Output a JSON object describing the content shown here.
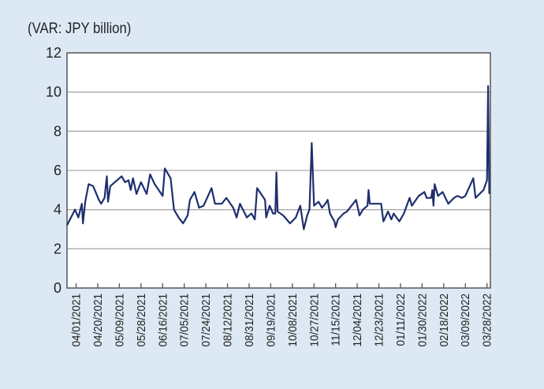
{
  "chart_data": {
    "type": "line",
    "title": "",
    "unit_label": "(VAR: JPY billion)",
    "xlabel": "",
    "ylabel": "",
    "ylim": [
      0,
      12
    ],
    "yticks": [
      0,
      2,
      4,
      6,
      8,
      10,
      12
    ],
    "grid": true,
    "x_domain_days_from_2021_04_01": [
      -8,
      364
    ],
    "xtick_days": [
      0,
      19,
      38,
      57,
      76,
      95,
      114,
      133,
      152,
      171,
      190,
      209,
      228,
      247,
      266,
      285,
      304,
      323,
      342,
      361
    ],
    "xtick_labels": [
      "04/01/2021",
      "04/20/2021",
      "05/09/2021",
      "05/28/2021",
      "06/16/2021",
      "07/05/2021",
      "07/24/2021",
      "08/12/2021",
      "08/31/2021",
      "09/19/2021",
      "10/08/2021",
      "10/27/2021",
      "11/15/2021",
      "12/04/2021",
      "12/23/2021",
      "01/11/2022",
      "01/30/2022",
      "02/18/2022",
      "03/09/2022",
      "03/28/2022"
    ],
    "series": [
      {
        "name": "VAR",
        "color": "#1f2f6e",
        "points": [
          [
            -8,
            3.2
          ],
          [
            -1,
            4.0
          ],
          [
            2,
            3.6
          ],
          [
            5,
            4.3
          ],
          [
            6,
            3.3
          ],
          [
            8,
            4.4
          ],
          [
            11,
            5.3
          ],
          [
            15,
            5.2
          ],
          [
            20,
            4.5
          ],
          [
            22,
            4.3
          ],
          [
            25,
            4.6
          ],
          [
            27,
            5.7
          ],
          [
            28,
            4.4
          ],
          [
            30,
            5.2
          ],
          [
            36,
            5.5
          ],
          [
            40,
            5.7
          ],
          [
            43,
            5.4
          ],
          [
            46,
            5.5
          ],
          [
            48,
            5.0
          ],
          [
            50,
            5.6
          ],
          [
            53,
            4.8
          ],
          [
            57,
            5.4
          ],
          [
            62,
            4.8
          ],
          [
            65,
            5.8
          ],
          [
            69,
            5.3
          ],
          [
            76,
            4.7
          ],
          [
            78,
            6.1
          ],
          [
            83,
            5.6
          ],
          [
            86,
            4.0
          ],
          [
            90,
            3.6
          ],
          [
            94,
            3.3
          ],
          [
            98,
            3.7
          ],
          [
            100,
            4.5
          ],
          [
            104,
            4.9
          ],
          [
            108,
            4.1
          ],
          [
            112,
            4.2
          ],
          [
            119,
            5.1
          ],
          [
            122,
            4.3
          ],
          [
            128,
            4.3
          ],
          [
            132,
            4.6
          ],
          [
            138,
            4.1
          ],
          [
            141,
            3.6
          ],
          [
            144,
            4.3
          ],
          [
            150,
            3.6
          ],
          [
            154,
            3.8
          ],
          [
            157,
            3.5
          ],
          [
            159,
            5.1
          ],
          [
            166,
            4.5
          ],
          [
            167,
            3.6
          ],
          [
            170,
            4.2
          ],
          [
            173,
            3.8
          ],
          [
            175,
            3.8
          ],
          [
            176,
            5.9
          ],
          [
            177,
            3.9
          ],
          [
            182,
            3.7
          ],
          [
            188,
            3.3
          ],
          [
            193,
            3.6
          ],
          [
            197,
            4.2
          ],
          [
            200,
            3.0
          ],
          [
            203,
            3.7
          ],
          [
            205,
            4.0
          ],
          [
            207,
            7.4
          ],
          [
            209,
            4.2
          ],
          [
            213,
            4.4
          ],
          [
            216,
            4.1
          ],
          [
            219,
            4.3
          ],
          [
            221,
            4.5
          ],
          [
            223,
            3.8
          ],
          [
            227,
            3.4
          ],
          [
            228,
            3.1
          ],
          [
            230,
            3.5
          ],
          [
            235,
            3.8
          ],
          [
            238,
            3.9
          ],
          [
            246,
            4.5
          ],
          [
            249,
            3.7
          ],
          [
            252,
            4.0
          ],
          [
            256,
            4.2
          ],
          [
            257,
            5.0
          ],
          [
            258,
            4.3
          ],
          [
            263,
            4.3
          ],
          [
            268,
            4.3
          ],
          [
            270,
            3.4
          ],
          [
            274,
            3.9
          ],
          [
            277,
            3.5
          ],
          [
            279,
            3.8
          ],
          [
            284,
            3.4
          ],
          [
            288,
            3.8
          ],
          [
            293,
            4.6
          ],
          [
            295,
            4.2
          ],
          [
            301,
            4.7
          ],
          [
            306,
            4.9
          ],
          [
            308,
            4.6
          ],
          [
            312,
            4.6
          ],
          [
            313,
            5.0
          ],
          [
            314,
            4.2
          ],
          [
            315,
            5.3
          ],
          [
            318,
            4.7
          ],
          [
            322,
            4.9
          ],
          [
            327,
            4.3
          ],
          [
            332,
            4.6
          ],
          [
            335,
            4.7
          ],
          [
            339,
            4.6
          ],
          [
            342,
            4.7
          ],
          [
            349,
            5.6
          ],
          [
            351,
            4.6
          ],
          [
            358,
            5.0
          ],
          [
            361,
            5.5
          ],
          [
            362,
            10.3
          ],
          [
            363,
            4.8
          ]
        ]
      }
    ]
  }
}
